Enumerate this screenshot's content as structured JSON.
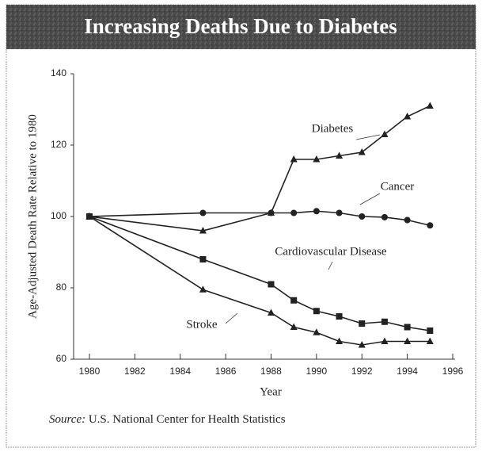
{
  "chart_data": {
    "type": "line",
    "title": "Increasing Deaths Due to Diabetes",
    "x_label": "Year",
    "y_label": "Age-Adjusted Death Rate Relative to 1980",
    "source_label": "Source:",
    "source": "U.S. National Center for Health Statistics",
    "x": [
      1980,
      1985,
      1988,
      1989,
      1990,
      1991,
      1992,
      1993,
      1994,
      1995
    ],
    "series": [
      {
        "name": "Diabetes",
        "color": "#222222",
        "marker": "triangle",
        "values": [
          100,
          96,
          101,
          116,
          116,
          117,
          118,
          123,
          128,
          131
        ]
      },
      {
        "name": "Cancer",
        "color": "#222222",
        "marker": "circle",
        "values": [
          100,
          101,
          101,
          101,
          101.5,
          101,
          100,
          99.8,
          99,
          97.5
        ]
      },
      {
        "name": "Cardiovascular Disease",
        "color": "#222222",
        "marker": "square",
        "values": [
          100,
          88,
          81,
          76.5,
          73.5,
          72,
          70,
          70.5,
          69,
          68
        ]
      },
      {
        "name": "Stroke",
        "color": "#222222",
        "marker": "triangle",
        "values": [
          100,
          79.5,
          73,
          69,
          67.5,
          65,
          64,
          65,
          65,
          65
        ]
      }
    ],
    "xlim": [
      1980,
      1996
    ],
    "xticks": [
      1980,
      1982,
      1984,
      1986,
      1988,
      1990,
      1992,
      1994,
      1996
    ],
    "ylim": [
      60,
      140
    ],
    "yticks": [
      60,
      80,
      100,
      120,
      140
    ],
    "grid": false
  }
}
